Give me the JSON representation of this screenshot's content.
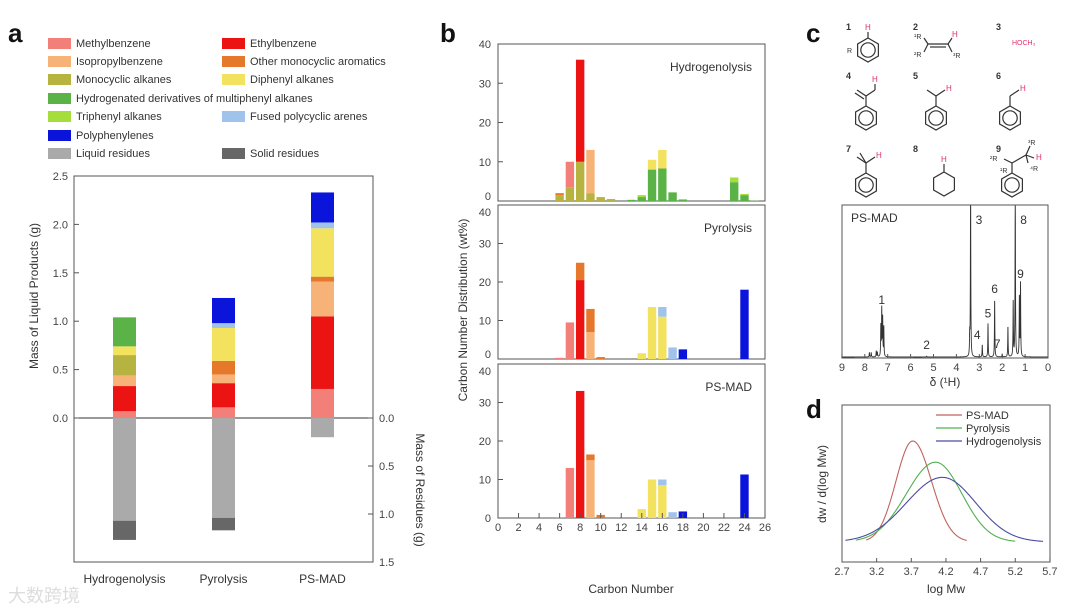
{
  "panel_labels": {
    "a": "a",
    "b": "b",
    "c": "c",
    "d": "d"
  },
  "watermark": "大数跨境",
  "legend": [
    {
      "key": "methyl",
      "name": "Methylbenzene",
      "color": "#f27f78"
    },
    {
      "key": "ethyl",
      "name": "Ethylbenzene",
      "color": "#ec1313"
    },
    {
      "key": "iso",
      "name": "Isopropylbenzene",
      "color": "#f7b277"
    },
    {
      "key": "other",
      "name": "Other monocyclic aromatics",
      "color": "#e6782c"
    },
    {
      "key": "mono",
      "name": "Monocyclic alkanes",
      "color": "#b7b340"
    },
    {
      "key": "diph",
      "name": "Diphenyl alkanes",
      "color": "#f2e25e"
    },
    {
      "key": "hyd",
      "name": "Hydrogenated derivatives of multiphenyl alkanes",
      "color": "#5bb347"
    },
    {
      "key": "tri",
      "name": "Triphenyl alkanes",
      "color": "#a5de3b"
    },
    {
      "key": "fused",
      "name": "Fused polycyclic arenes",
      "color": "#9fc3ea"
    },
    {
      "key": "poly",
      "name": "Polyphenylenes",
      "color": "#0a14da"
    },
    {
      "key": "liqres",
      "name": "Liquid residues",
      "color": "#aaaaaa"
    },
    {
      "key": "solres",
      "name": "Solid residues",
      "color": "#676767"
    }
  ],
  "chart_data": [
    {
      "type": "bar",
      "stacked": true,
      "categories": [
        "Hydrogenolysis",
        "Pyrolysis",
        "PS-MAD"
      ],
      "ylabel": "Mass of Liquid Products (g)",
      "ylabel_right": "Mass of Residues (g)",
      "ylim": [
        0,
        2.5
      ],
      "ylim_right": [
        0,
        1.5
      ],
      "y_ticks": [
        "0.0",
        "0.5",
        "1.0",
        "1.5",
        "2.0",
        "2.5"
      ],
      "y_ticks_right": [
        "0.0",
        "0.5",
        "1.0",
        "1.5"
      ],
      "liquid_series": [
        {
          "key": "methyl",
          "values": [
            0.07,
            0.11,
            0.3
          ]
        },
        {
          "key": "ethyl",
          "values": [
            0.26,
            0.25,
            0.75
          ]
        },
        {
          "key": "iso",
          "values": [
            0.11,
            0.09,
            0.36
          ]
        },
        {
          "key": "other",
          "values": [
            0,
            0.14,
            0.05
          ]
        },
        {
          "key": "mono",
          "values": [
            0.21,
            0,
            0
          ]
        },
        {
          "key": "diph",
          "values": [
            0.09,
            0.34,
            0.5
          ]
        },
        {
          "key": "tri",
          "values": [
            0,
            0,
            0
          ]
        },
        {
          "key": "hyd",
          "values": [
            0.3,
            0,
            0
          ]
        },
        {
          "key": "fused",
          "values": [
            0,
            0.05,
            0.06
          ]
        },
        {
          "key": "poly",
          "values": [
            0,
            0.26,
            0.31
          ]
        }
      ],
      "residue_series": [
        {
          "key": "liqres",
          "values": [
            1.07,
            1.04,
            0.2
          ]
        },
        {
          "key": "solres",
          "values": [
            0.2,
            0.13,
            0
          ]
        }
      ]
    },
    {
      "type": "bar",
      "stacked": true,
      "xlabel": "Carbon Number",
      "ylabel": "Carbon Number Distribution (wt%)",
      "xlim": [
        0,
        26
      ],
      "ylim": [
        0,
        40
      ],
      "x_ticks": [
        "0",
        "2",
        "4",
        "6",
        "8",
        "10",
        "12",
        "14",
        "16",
        "18",
        "20",
        "22",
        "24",
        "26"
      ],
      "y_ticks": [
        "0",
        "10",
        "20",
        "30",
        "40"
      ],
      "subplots": [
        {
          "title": "Hydrogenolysis",
          "bars": [
            {
              "c": 6,
              "stack": [
                [
                  "mono",
                  1.5
                ],
                [
                  "other",
                  0.5
                ]
              ]
            },
            {
              "c": 7,
              "stack": [
                [
                  "mono",
                  3.5
                ],
                [
                  "methyl",
                  6.5
                ]
              ]
            },
            {
              "c": 8,
              "stack": [
                [
                  "mono",
                  10
                ],
                [
                  "ethyl",
                  26
                ]
              ]
            },
            {
              "c": 9,
              "stack": [
                [
                  "mono",
                  2
                ],
                [
                  "iso",
                  11
                ]
              ]
            },
            {
              "c": 10,
              "stack": [
                [
                  "mono",
                  1
                ]
              ]
            },
            {
              "c": 11,
              "stack": [
                [
                  "mono",
                  0.5
                ]
              ]
            },
            {
              "c": 13,
              "stack": [
                [
                  "hyd",
                  0.3
                ]
              ]
            },
            {
              "c": 14,
              "stack": [
                [
                  "hyd",
                  1
                ],
                [
                  "tri",
                  0.5
                ]
              ]
            },
            {
              "c": 15,
              "stack": [
                [
                  "hyd",
                  8
                ],
                [
                  "diph",
                  2.5
                ]
              ]
            },
            {
              "c": 16,
              "stack": [
                [
                  "hyd",
                  8.3
                ],
                [
                  "diph",
                  4.7
                ]
              ]
            },
            {
              "c": 17,
              "stack": [
                [
                  "hyd",
                  2.2
                ]
              ]
            },
            {
              "c": 18,
              "stack": [
                [
                  "hyd",
                  0.4
                ]
              ]
            },
            {
              "c": 23,
              "stack": [
                [
                  "hyd",
                  4.8
                ],
                [
                  "tri",
                  1.2
                ]
              ]
            },
            {
              "c": 24,
              "stack": [
                [
                  "hyd",
                  1.5
                ],
                [
                  "tri",
                  0.3
                ]
              ]
            },
            {
              "c": 25,
              "stack": [
                [
                  "hyd",
                  0.1
                ]
              ]
            }
          ]
        },
        {
          "title": "Pyrolysis",
          "bars": [
            {
              "c": 6,
              "stack": [
                [
                  "methyl",
                  0.3
                ]
              ]
            },
            {
              "c": 7,
              "stack": [
                [
                  "methyl",
                  9.5
                ]
              ]
            },
            {
              "c": 8,
              "stack": [
                [
                  "ethyl",
                  20.5
                ],
                [
                  "other",
                  4.5
                ]
              ]
            },
            {
              "c": 9,
              "stack": [
                [
                  "iso",
                  7
                ],
                [
                  "other",
                  6
                ]
              ]
            },
            {
              "c": 10,
              "stack": [
                [
                  "other",
                  0.5
                ]
              ]
            },
            {
              "c": 14,
              "stack": [
                [
                  "diph",
                  1.5
                ]
              ]
            },
            {
              "c": 15,
              "stack": [
                [
                  "diph",
                  13.5
                ]
              ]
            },
            {
              "c": 16,
              "stack": [
                [
                  "diph",
                  11
                ],
                [
                  "fused",
                  2.5
                ]
              ]
            },
            {
              "c": 17,
              "stack": [
                [
                  "fused",
                  3
                ]
              ]
            },
            {
              "c": 18,
              "stack": [
                [
                  "poly",
                  2.5
                ]
              ]
            },
            {
              "c": 24,
              "stack": [
                [
                  "poly",
                  18
                ]
              ]
            }
          ]
        },
        {
          "title": "PS-MAD",
          "bars": [
            {
              "c": 6,
              "stack": [
                [
                  "methyl",
                  0.2
                ]
              ]
            },
            {
              "c": 7,
              "stack": [
                [
                  "methyl",
                  13
                ]
              ]
            },
            {
              "c": 8,
              "stack": [
                [
                  "ethyl",
                  33
                ]
              ]
            },
            {
              "c": 9,
              "stack": [
                [
                  "iso",
                  15
                ],
                [
                  "other",
                  1.5
                ]
              ]
            },
            {
              "c": 10,
              "stack": [
                [
                  "other",
                  0.8
                ]
              ]
            },
            {
              "c": 14,
              "stack": [
                [
                  "diph",
                  2.3
                ]
              ]
            },
            {
              "c": 15,
              "stack": [
                [
                  "diph",
                  10
                ]
              ]
            },
            {
              "c": 16,
              "stack": [
                [
                  "diph",
                  8.5
                ],
                [
                  "fused",
                  1.5
                ]
              ]
            },
            {
              "c": 17,
              "stack": [
                [
                  "fused",
                  1.5
                ]
              ]
            },
            {
              "c": 18,
              "stack": [
                [
                  "poly",
                  1.7
                ]
              ]
            },
            {
              "c": 24,
              "stack": [
                [
                  "poly",
                  11.3
                ]
              ]
            }
          ]
        }
      ]
    },
    {
      "type": "line",
      "title": "PS-MAD",
      "xlabel": "δ (¹H)",
      "xlim": [
        9,
        0
      ],
      "x_ticks": [
        "9",
        "8",
        "7",
        "6",
        "5",
        "4",
        "3",
        "2",
        "1",
        "0"
      ],
      "structures": {
        "numbers": [
          "1",
          "2",
          "3",
          "4",
          "5",
          "6",
          "7",
          "8",
          "9"
        ],
        "h": "H",
        "r": "R",
        "r1": "¹R",
        "r2": "²R",
        "r3": "³R",
        "r4": "⁴R",
        "methanol": "HOCH₃"
      },
      "peaks": [
        {
          "ppm": 7.8,
          "h": 0.03
        },
        {
          "ppm": 7.72,
          "h": 0.03
        },
        {
          "ppm": 7.5,
          "h": 0.04
        },
        {
          "ppm": 7.45,
          "h": 0.03
        },
        {
          "ppm": 7.3,
          "h": 0.2
        },
        {
          "ppm": 7.26,
          "h": 0.31,
          "label": "1"
        },
        {
          "ppm": 7.22,
          "h": 0.25
        },
        {
          "ppm": 7.17,
          "h": 0.2
        },
        {
          "ppm": 5.3,
          "h": 0.005,
          "label": "2"
        },
        {
          "ppm": 3.42,
          "h": 0.12
        },
        {
          "ppm": 3.38,
          "h": 1.2,
          "label": "3"
        },
        {
          "ppm": 2.87,
          "h": 0.08,
          "label": "4"
        },
        {
          "ppm": 2.62,
          "h": 0.22,
          "label": "5"
        },
        {
          "ppm": 2.33,
          "h": 0.38,
          "label": "6"
        },
        {
          "ppm": 2.0,
          "h": 0.02,
          "label": "7"
        },
        {
          "ppm": 1.75,
          "h": 0.2
        },
        {
          "ppm": 1.52,
          "h": 0.36
        },
        {
          "ppm": 1.43,
          "h": 1.2,
          "label": "8"
        },
        {
          "ppm": 1.25,
          "h": 0.4
        },
        {
          "ppm": 1.2,
          "h": 0.48,
          "label": "9"
        }
      ]
    },
    {
      "type": "line",
      "xlabel": "log Mw",
      "ylabel": "dw / d(log Mw)",
      "xlim": [
        2.7,
        5.7
      ],
      "ylim": [
        -0.19,
        1.36
      ],
      "x_ticks": [
        "2.7",
        "3.2",
        "3.7",
        "4.2",
        "4.7",
        "5.2",
        "5.7"
      ],
      "legend_position": "top-right",
      "series": [
        {
          "name": "PS-MAD",
          "color": "#c0625e",
          "peak_x": 3.72,
          "peak_y": 1.0,
          "sigma_left": 0.24,
          "sigma_right": 0.27,
          "x_range": [
            3.05,
            4.5
          ]
        },
        {
          "name": "Pyrolysis",
          "color": "#4fb04f",
          "peak_x": 4.05,
          "peak_y": 0.79,
          "sigma_left": 0.42,
          "sigma_right": 0.38,
          "x_range": [
            2.9,
            5.2
          ]
        },
        {
          "name": "Hydrogenolysis",
          "color": "#4b4ca0",
          "peak_x": 4.15,
          "peak_y": 0.64,
          "sigma_left": 0.52,
          "sigma_right": 0.48,
          "x_range": [
            2.75,
            5.6
          ]
        }
      ]
    }
  ]
}
